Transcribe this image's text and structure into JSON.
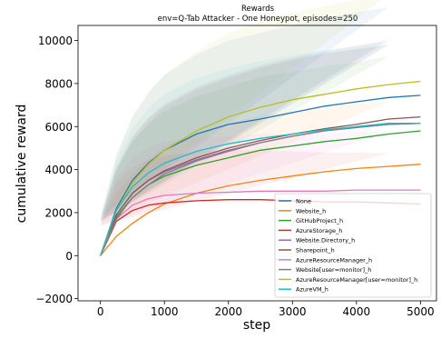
{
  "chart_data": {
    "type": "line",
    "title": "Rewards",
    "subtitle": "env=Q-Tab Attacker - One Honeypot, episodes=250",
    "xlabel": "step",
    "ylabel": "cumulative reward",
    "xlim": [
      -350,
      5250
    ],
    "ylim": [
      -2100,
      10700
    ],
    "xticks": [
      0,
      1000,
      2000,
      3000,
      4000,
      5000
    ],
    "xtick_labels": [
      "0",
      "1000",
      "2000",
      "3000",
      "4000",
      "5000"
    ],
    "yticks": [
      -2000,
      0,
      2000,
      4000,
      6000,
      8000,
      10000
    ],
    "ytick_labels": [
      "−2000",
      "0",
      "2000",
      "4000",
      "6000",
      "8000",
      "10000"
    ],
    "grid": false,
    "legend_position": "lower-right",
    "shaded_bands": true,
    "x": [
      0,
      250,
      500,
      750,
      1000,
      1500,
      2000,
      2500,
      3000,
      3500,
      4000,
      4500,
      5000
    ],
    "series": [
      {
        "name": "None",
        "color": "#1f77b4",
        "values": [
          0,
          2200,
          3500,
          4300,
          4900,
          5650,
          6100,
          6350,
          6650,
          6950,
          7150,
          7350,
          7450
        ],
        "band": [
          1800,
          2500,
          3000,
          3300,
          3500,
          3700,
          3900,
          4000,
          4050,
          4100,
          4150,
          4200
        ]
      },
      {
        "name": "Website_h",
        "color": "#ff7f0e",
        "values": [
          0,
          900,
          1500,
          2000,
          2400,
          2900,
          3250,
          3500,
          3700,
          3900,
          4050,
          4150,
          4250
        ],
        "band": [
          1500,
          2000,
          2300,
          2500,
          2700,
          2800,
          2900,
          3000,
          3000,
          3000,
          3000,
          3000
        ]
      },
      {
        "name": "GitHubProject_h",
        "color": "#2ca02c",
        "values": [
          0,
          1800,
          2700,
          3300,
          3700,
          4200,
          4550,
          4900,
          5100,
          5300,
          5450,
          5650,
          5800
        ],
        "band": [
          1600,
          2200,
          2600,
          2800,
          3000,
          3200,
          3300,
          3400,
          3450,
          3500,
          3550,
          3600
        ]
      },
      {
        "name": "AzureStorage_h",
        "color": "#d62728",
        "values": [
          0,
          1600,
          2100,
          2350,
          2450,
          2550,
          2600,
          2600,
          2550,
          2500,
          2500,
          2450,
          2400
        ],
        "band": [
          1400,
          1800,
          2000,
          2100,
          2200,
          2300,
          2300,
          2300,
          2300,
          2300,
          2300,
          2300
        ]
      },
      {
        "name": "Website.Directory_h",
        "color": "#9467bd",
        "values": [
          0,
          1900,
          2900,
          3500,
          3900,
          4450,
          4900,
          5250,
          5550,
          5800,
          5950,
          6100,
          6150
        ],
        "band": [
          1600,
          2200,
          2600,
          2900,
          3100,
          3300,
          3400,
          3500,
          3550,
          3600,
          3650,
          3700
        ]
      },
      {
        "name": "Sharepoint_h",
        "color": "#8c564b",
        "values": [
          0,
          1900,
          2900,
          3500,
          3950,
          4550,
          5000,
          5350,
          5650,
          5900,
          6100,
          6350,
          6450
        ],
        "band": [
          1600,
          2200,
          2600,
          2900,
          3100,
          3300,
          3400,
          3500,
          3550,
          3600,
          3650,
          3700
        ]
      },
      {
        "name": "AzureResourceManager_h",
        "color": "#e377c2",
        "values": [
          0,
          1700,
          2350,
          2650,
          2800,
          2900,
          2950,
          3000,
          3000,
          3000,
          3050,
          3050,
          3050
        ],
        "band": [
          1400,
          1900,
          2200,
          2400,
          2500,
          2600,
          2600,
          2650,
          2650,
          2700,
          2700,
          2700
        ]
      },
      {
        "name": "Website[user=monitor]_h",
        "color": "#7f7f7f",
        "values": [
          0,
          1700,
          2700,
          3300,
          3800,
          4400,
          4850,
          5250,
          5550,
          5800,
          5950,
          6100,
          6150
        ],
        "band": [
          1600,
          2200,
          2600,
          2900,
          3100,
          3300,
          3400,
          3500,
          3550,
          3600,
          3650,
          3700
        ]
      },
      {
        "name": "AzureResourceManager[user=monitor]_h",
        "color": "#bcbd22",
        "values": [
          0,
          2100,
          3400,
          4250,
          4900,
          5800,
          6450,
          6900,
          7250,
          7500,
          7750,
          7950,
          8100
        ],
        "band": [
          1800,
          2500,
          3000,
          3300,
          3500,
          3700,
          3900,
          4000,
          4050,
          4100,
          4150,
          4200
        ]
      },
      {
        "name": "AzureVM_h",
        "color": "#17becf",
        "values": [
          0,
          2100,
          3200,
          3850,
          4300,
          4850,
          5200,
          5450,
          5650,
          5850,
          6000,
          6150,
          6150
        ],
        "band": [
          1700,
          2300,
          2700,
          3000,
          3200,
          3400,
          3500,
          3600,
          3650,
          3700,
          3750,
          3800
        ]
      }
    ]
  }
}
